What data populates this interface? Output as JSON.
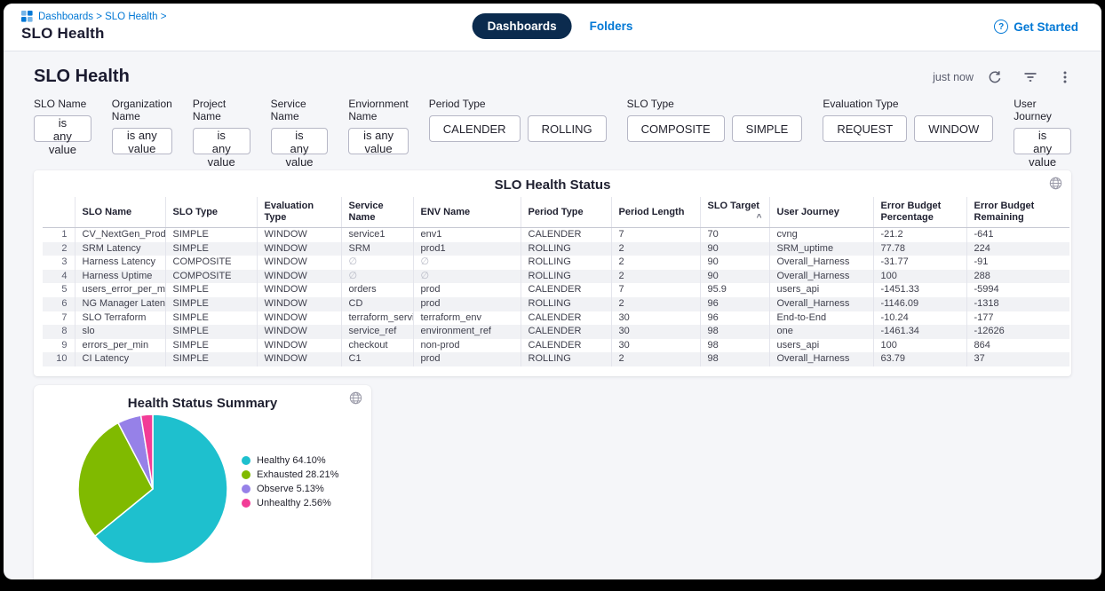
{
  "colors": {
    "accent": "#0278d5",
    "navy_pill": "#0b2b4e",
    "background": "#f5f6f9"
  },
  "topbar": {
    "breadcrumb": "Dashboards > SLO Health >",
    "page_title": "SLO Health",
    "tabs": [
      {
        "label": "Dashboards",
        "active": true
      },
      {
        "label": "Folders",
        "active": false
      }
    ],
    "get_started": "Get Started",
    "help_icon": "?"
  },
  "dashboard": {
    "title": "SLO Health",
    "last_refreshed": "just now",
    "action_icons": [
      "refresh-icon",
      "filter-icon",
      "kebab-menu-icon"
    ]
  },
  "filters": [
    {
      "label": "SLO Name",
      "buttons": [
        "is any value"
      ]
    },
    {
      "label": "Organization Name",
      "buttons": [
        "is any value"
      ]
    },
    {
      "label": "Project Name",
      "buttons": [
        "is any value"
      ]
    },
    {
      "label": "Service Name",
      "buttons": [
        "is any value"
      ]
    },
    {
      "label": "Enviornment Name",
      "buttons": [
        "is any value"
      ]
    },
    {
      "label": "Period Type",
      "buttons": [
        "CALENDER",
        "ROLLING"
      ]
    },
    {
      "label": "SLO Type",
      "buttons": [
        "COMPOSITE",
        "SIMPLE"
      ]
    },
    {
      "label": "Evaluation Type",
      "buttons": [
        "REQUEST",
        "WINDOW"
      ]
    },
    {
      "label": "User Journey",
      "buttons": [
        "is any value"
      ]
    }
  ],
  "table": {
    "title": "SLO Health Status",
    "sorted_column": "SLO Target",
    "sort_indicator": "^",
    "columns": [
      "SLO Name",
      "SLO Type",
      "Evaluation Type",
      "Service Name",
      "ENV Name",
      "Period Type",
      "Period Length",
      "SLO Target",
      "User Journey",
      "Error Budget\nPercentage",
      "Error Budget\nRemaining"
    ],
    "rows": [
      [
        "1",
        "CV_NextGen_Prod",
        "SIMPLE",
        "WINDOW",
        "service1",
        "env1",
        "CALENDER",
        "7",
        "70",
        "cvng",
        "-21.2",
        "-641"
      ],
      [
        "2",
        "SRM Latency",
        "SIMPLE",
        "WINDOW",
        "SRM",
        "prod1",
        "ROLLING",
        "2",
        "90",
        "SRM_uptime",
        "77.78",
        "224"
      ],
      [
        "3",
        "Harness Latency",
        "COMPOSITE",
        "WINDOW",
        "∅",
        "∅",
        "ROLLING",
        "2",
        "90",
        "Overall_Harness",
        "-31.77",
        "-91"
      ],
      [
        "4",
        "Harness Uptime",
        "COMPOSITE",
        "WINDOW",
        "∅",
        "∅",
        "ROLLING",
        "2",
        "90",
        "Overall_Harness",
        "100",
        "288"
      ],
      [
        "5",
        "users_error_per_min",
        "SIMPLE",
        "WINDOW",
        "orders",
        "prod",
        "CALENDER",
        "7",
        "95.9",
        "users_api",
        "-1451.33",
        "-5994"
      ],
      [
        "6",
        "NG Manager Latency",
        "SIMPLE",
        "WINDOW",
        "CD",
        "prod",
        "ROLLING",
        "2",
        "96",
        "Overall_Harness",
        "-1146.09",
        "-1318"
      ],
      [
        "7",
        "SLO Terraform",
        "SIMPLE",
        "WINDOW",
        "terraform_service",
        "terraform_env",
        "CALENDER",
        "30",
        "96",
        "End-to-End",
        "-10.24",
        "-177"
      ],
      [
        "8",
        "slo",
        "SIMPLE",
        "WINDOW",
        "service_ref",
        "environment_ref",
        "CALENDER",
        "30",
        "98",
        "one",
        "-1461.34",
        "-12626"
      ],
      [
        "9",
        "errors_per_min",
        "SIMPLE",
        "WINDOW",
        "checkout",
        "non-prod",
        "CALENDER",
        "30",
        "98",
        "users_api",
        "100",
        "864"
      ],
      [
        "10",
        "CI Latency",
        "SIMPLE",
        "WINDOW",
        "C1",
        "prod",
        "ROLLING",
        "2",
        "98",
        "Overall_Harness",
        "63.79",
        "37"
      ]
    ]
  },
  "chart_data": {
    "type": "pie",
    "title": "Health Status Summary",
    "labels": [
      "Healthy",
      "Exhausted",
      "Observe",
      "Unhealthy"
    ],
    "values": [
      64.1,
      28.21,
      5.13,
      2.56
    ],
    "colors": [
      "#1ec0ce",
      "#80ba00",
      "#9681e8",
      "#f23c97"
    ],
    "legend_entries": [
      "Healthy 64.10%",
      "Exhausted 28.21%",
      "Observe 5.13%",
      "Unhealthy 2.56%"
    ],
    "legend_position": "right",
    "start_angle_deg": 0
  }
}
